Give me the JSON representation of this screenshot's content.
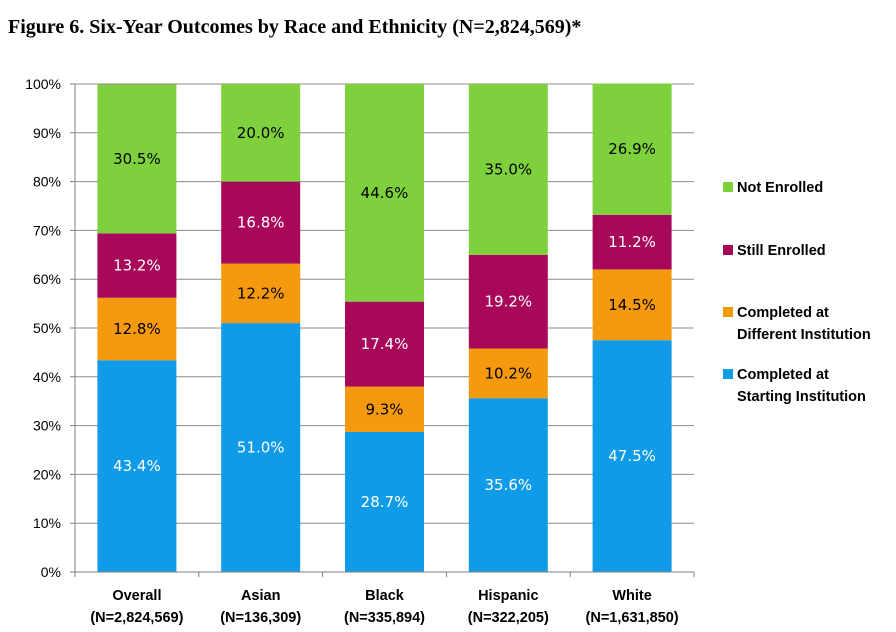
{
  "title": "Figure 6. Six-Year Outcomes by Race and Ethnicity (N=2,824,569)*",
  "chart_data": {
    "type": "bar",
    "stacked": true,
    "ylim": [
      0,
      100
    ],
    "yticks": [
      "0%",
      "10%",
      "20%",
      "30%",
      "40%",
      "50%",
      "60%",
      "70%",
      "80%",
      "90%",
      "100%"
    ],
    "categories": [
      {
        "name": "Overall",
        "n": "(N=2,824,569)"
      },
      {
        "name": "Asian",
        "n": "(N=136,309)"
      },
      {
        "name": "Black",
        "n": "(N=335,894)"
      },
      {
        "name": "Hispanic",
        "n": "(N=322,205)"
      },
      {
        "name": "White",
        "n": "(N=1,631,850)"
      }
    ],
    "series": [
      {
        "name": [
          "Completed at",
          "Starting Institution"
        ],
        "color": "#0f9be8",
        "label_color": "#ffffff",
        "values": [
          43.4,
          51.0,
          28.7,
          35.6,
          47.5
        ],
        "labels": [
          "43.4%",
          "51.0%",
          "28.7%",
          "35.6%",
          "47.5%"
        ]
      },
      {
        "name": [
          "Completed at",
          "Different Institution"
        ],
        "color": "#f59a0f",
        "label_color": "#000000",
        "values": [
          12.8,
          12.2,
          9.3,
          10.2,
          14.5
        ],
        "labels": [
          "12.8%",
          "12.2%",
          "9.3%",
          "10.2%",
          "14.5%"
        ]
      },
      {
        "name": [
          "Still Enrolled"
        ],
        "color": "#a8085a",
        "label_color": "#ffffff",
        "values": [
          13.2,
          16.8,
          17.4,
          19.2,
          11.2
        ],
        "labels": [
          "13.2%",
          "16.8%",
          "17.4%",
          "19.2%",
          "11.2%"
        ]
      },
      {
        "name": [
          "Not Enrolled"
        ],
        "color": "#7ed13c",
        "label_color": "#000000",
        "values": [
          30.5,
          20.0,
          44.6,
          35.0,
          26.9
        ],
        "labels": [
          "30.5%",
          "20.0%",
          "44.6%",
          "35.0%",
          "26.9%"
        ]
      }
    ],
    "legend_position": "right",
    "grid": true
  }
}
